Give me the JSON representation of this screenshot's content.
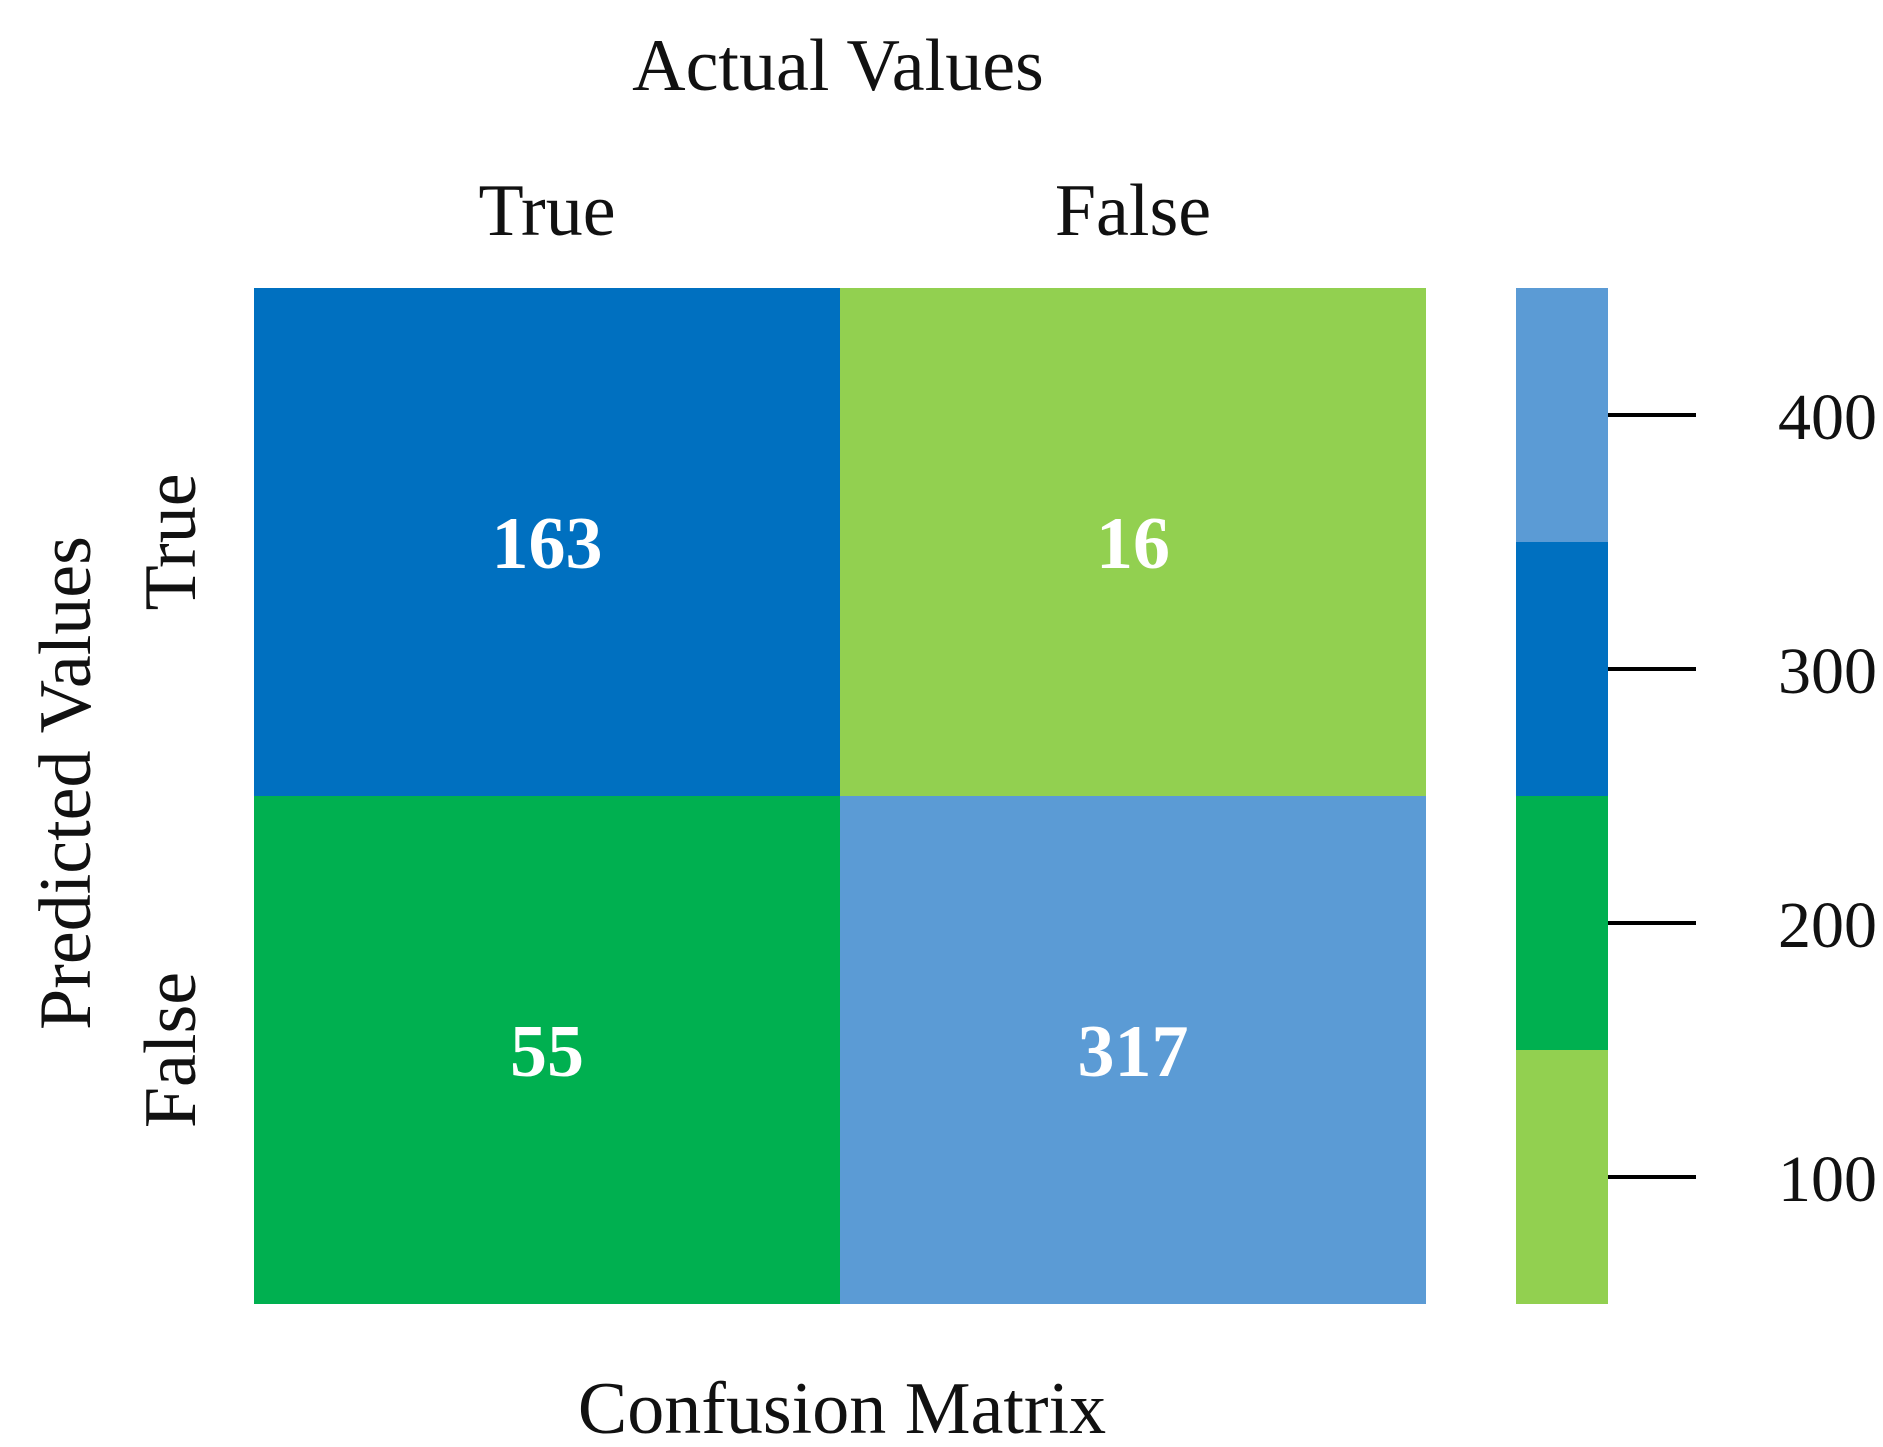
{
  "chart_data": {
    "type": "heatmap",
    "title": "Actual Values",
    "xlabel": "Actual Values",
    "ylabel": "Predicted Values",
    "caption": "Confusion Matrix",
    "x_categories": [
      "True",
      "False"
    ],
    "y_categories": [
      "True",
      "False"
    ],
    "values": [
      [
        163,
        16
      ],
      [
        55,
        317
      ]
    ],
    "cell_colors": [
      [
        "#0070C0",
        "#92D050"
      ],
      [
        "#00B050",
        "#5B9BD5"
      ]
    ],
    "colorbar": {
      "ticks": [
        100,
        200,
        300,
        400
      ],
      "tick_labels": [
        "100",
        "200",
        "300",
        "400"
      ],
      "range": [
        50,
        450
      ],
      "segments": [
        {
          "from": 50,
          "to": 150,
          "color": "#92D050"
        },
        {
          "from": 150,
          "to": 250,
          "color": "#00B050"
        },
        {
          "from": 250,
          "to": 350,
          "color": "#0070C0"
        },
        {
          "from": 350,
          "to": 450,
          "color": "#5B9BD5"
        }
      ]
    },
    "grid": false,
    "legend": "right"
  }
}
